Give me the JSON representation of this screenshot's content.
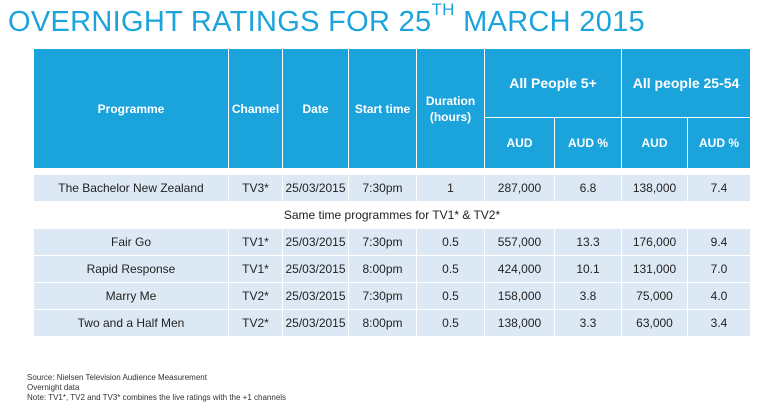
{
  "title": {
    "prefix": "OVERNIGHT RATINGS FOR 25",
    "superscript": "TH",
    "suffix": " MARCH 2015"
  },
  "colors": {
    "accent": "#1ba3dc",
    "row_bg": "#dce9f5"
  },
  "headers": {
    "programme": "Programme",
    "channel": "Channel",
    "date": "Date",
    "start_time": "Start time",
    "duration_line1": "Duration",
    "duration_line2": "(hours)",
    "group1": "All People 5+",
    "group2": "All people 25-54",
    "aud": "AUD",
    "aud_pct": "AUD %"
  },
  "main_row": {
    "programme": "The Bachelor New Zealand",
    "channel": "TV3*",
    "date": "25/03/2015",
    "start_time": "7:30pm",
    "duration": "1",
    "aud_5plus": "287,000",
    "aud_pct_5plus": "6.8",
    "aud_2554": "138,000",
    "aud_pct_2554": "7.4"
  },
  "same_time_label": "Same time programmes for TV1* & TV2*",
  "rows": [
    {
      "programme": "Fair Go",
      "channel": "TV1*",
      "date": "25/03/2015",
      "start_time": "7:30pm",
      "duration": "0.5",
      "aud_5plus": "557,000",
      "aud_pct_5plus": "13.3",
      "aud_2554": "176,000",
      "aud_pct_2554": "9.4"
    },
    {
      "programme": "Rapid Response",
      "channel": "TV1*",
      "date": "25/03/2015",
      "start_time": "8:00pm",
      "duration": "0.5",
      "aud_5plus": "424,000",
      "aud_pct_5plus": "10.1",
      "aud_2554": "131,000",
      "aud_pct_2554": "7.0"
    },
    {
      "programme": "Marry Me",
      "channel": "TV2*",
      "date": "25/03/2015",
      "start_time": "7:30pm",
      "duration": "0.5",
      "aud_5plus": "158,000",
      "aud_pct_5plus": "3.8",
      "aud_2554": "75,000",
      "aud_pct_2554": "4.0"
    },
    {
      "programme": "Two and a Half Men",
      "channel": "TV2*",
      "date": "25/03/2015",
      "start_time": "8:00pm",
      "duration": "0.5",
      "aud_5plus": "138,000",
      "aud_pct_5plus": "3.3",
      "aud_2554": "63,000",
      "aud_pct_2554": "3.4"
    }
  ],
  "footer": {
    "source": "Source: Nielsen Television Audience Measurement",
    "data_type": "Overnight data",
    "note": "Note: TV1*, TV2 and TV3* combines the live ratings with the  +1 channels"
  }
}
